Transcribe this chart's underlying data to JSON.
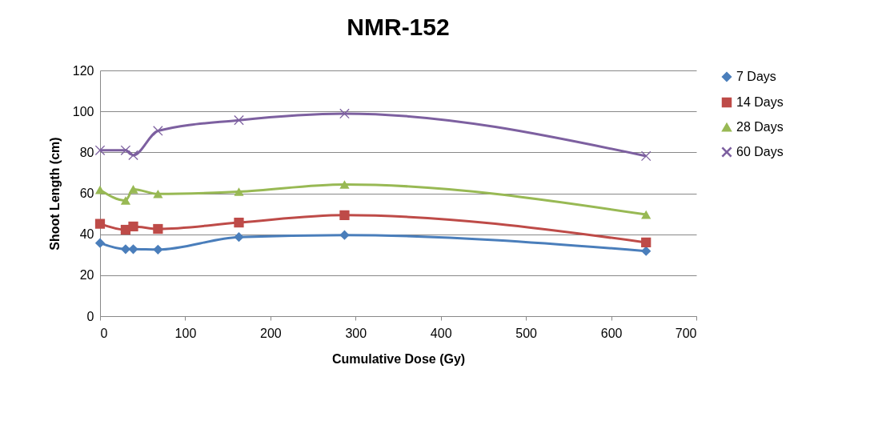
{
  "chart_data": {
    "type": "line",
    "title": "NMR-152",
    "xlabel": "Cumulative Dose (Gy)",
    "ylabel": "Shoot Length (cm)",
    "x": [
      0,
      30,
      39,
      68,
      163,
      287,
      641
    ],
    "series": [
      {
        "name": "7 Days",
        "color": "#4a7ebb",
        "marker": "diamond",
        "values": [
          35.7,
          32.7,
          32.7,
          32.5,
          38.6,
          39.6,
          31.8
        ]
      },
      {
        "name": "14 Days",
        "color": "#be4b48",
        "marker": "square",
        "values": [
          45.1,
          42.2,
          43.8,
          42.6,
          45.7,
          49.3,
          36
        ]
      },
      {
        "name": "28 Days",
        "color": "#98b954",
        "marker": "triangle",
        "values": [
          61.7,
          56.5,
          62,
          59.7,
          60.8,
          64.3,
          49.6
        ]
      },
      {
        "name": "60 Days",
        "color": "#7d60a0",
        "marker": "cross",
        "values": [
          81,
          81,
          78.6,
          90.5,
          95.7,
          98.9,
          78.2
        ]
      }
    ],
    "xlim": [
      0,
      700
    ],
    "xticks": [
      0,
      100,
      200,
      300,
      400,
      500,
      600,
      700
    ],
    "ylim": [
      0,
      120
    ],
    "yticks": [
      0,
      20,
      40,
      60,
      80,
      100,
      120
    ],
    "grid": "y",
    "legend": "right",
    "line_style": "solid"
  }
}
